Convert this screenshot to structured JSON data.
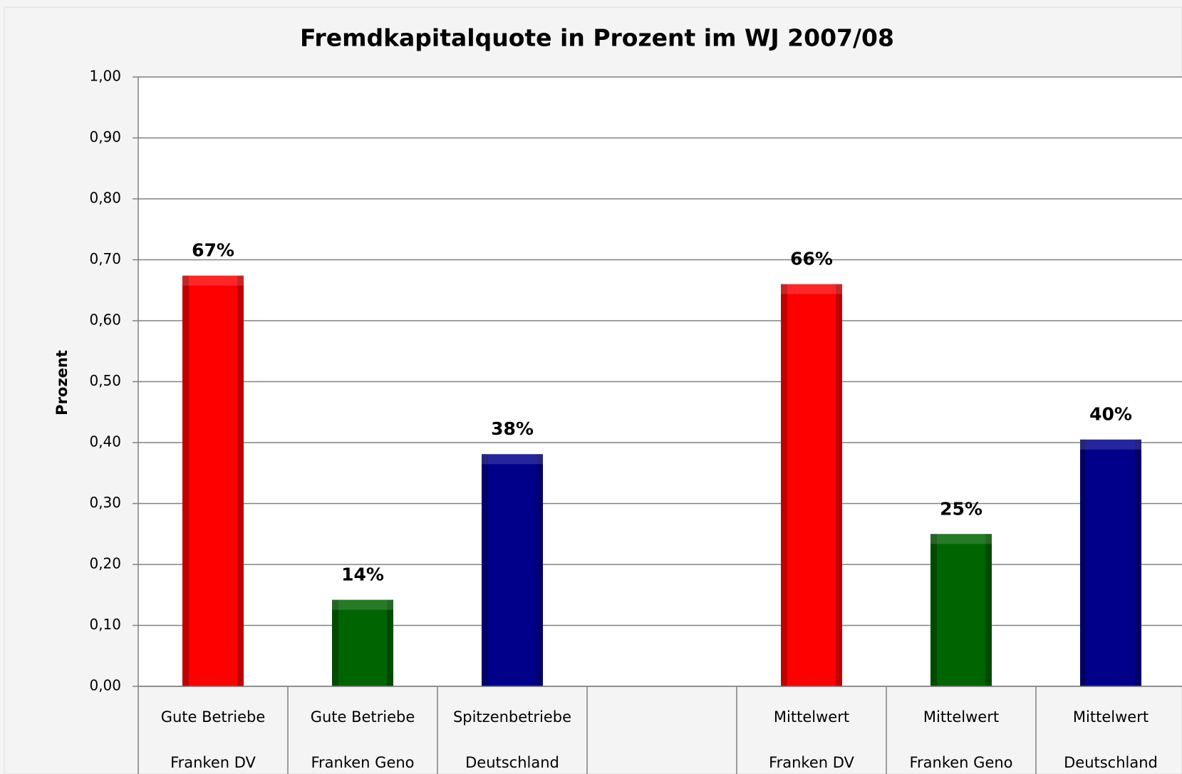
{
  "chart_data": {
    "type": "bar",
    "title": "Fremdkapitalquote in Prozent im WJ 2007/08",
    "y_label": "Prozent",
    "categories": [
      [
        "Gute Betriebe",
        "Franken DV"
      ],
      [
        "Gute Betriebe",
        "Franken Geno"
      ],
      [
        "Spitzenbetriebe",
        "Deutschland"
      ],
      null,
      [
        "Mittelwert",
        "Franken DV"
      ],
      [
        "Mittelwert",
        "Franken Geno"
      ],
      [
        "Mittelwert",
        "Deutschland"
      ]
    ],
    "values": [
      0.674,
      0.142,
      0.381,
      null,
      0.66,
      0.25,
      0.405
    ],
    "value_labels": [
      "67%",
      "14%",
      "38%",
      null,
      "66%",
      "25%",
      "40%"
    ],
    "colors": [
      "#ff0000",
      "#006400",
      "#00008b",
      null,
      "#ff0000",
      "#006400",
      "#00008b"
    ],
    "ylim": [
      0,
      1
    ],
    "yticks": [
      {
        "value": 0,
        "label": "0,00"
      },
      {
        "value": 0.1,
        "label": "0,10"
      },
      {
        "value": 0.2,
        "label": "0,20"
      },
      {
        "value": 0.3,
        "label": "0,30"
      },
      {
        "value": 0.4,
        "label": "0,40"
      },
      {
        "value": 0.5,
        "label": "0,50"
      },
      {
        "value": 0.6,
        "label": "0,60"
      },
      {
        "value": 0.7,
        "label": "0,70"
      },
      {
        "value": 0.8,
        "label": "0,80"
      },
      {
        "value": 0.9,
        "label": "0,90"
      },
      {
        "value": 1,
        "label": "1,00"
      }
    ],
    "grid": true
  }
}
